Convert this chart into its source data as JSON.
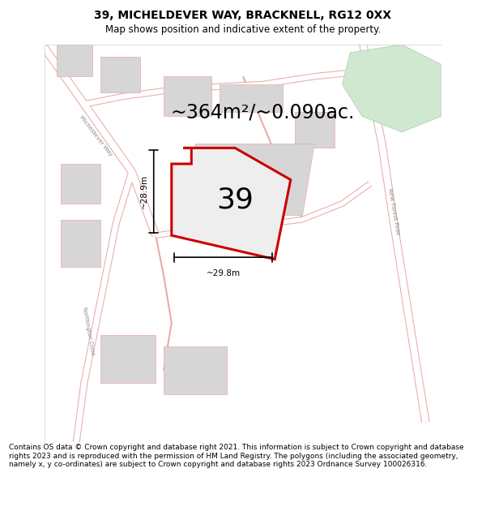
{
  "title": "39, MICHELDEVER WAY, BRACKNELL, RG12 0XX",
  "subtitle": "Map shows position and indicative extent of the property.",
  "area_text": "~364m²/~0.090ac.",
  "number_label": "39",
  "dim_height": "~28.9m",
  "dim_width": "~29.8m",
  "footer": "Contains OS data © Crown copyright and database right 2021. This information is subject to Crown copyright and database rights 2023 and is reproduced with the permission of HM Land Registry. The polygons (including the associated geometry, namely x, y co-ordinates) are subject to Crown copyright and database rights 2023 Ordnance Survey 100026316.",
  "title_fontsize": 10,
  "subtitle_fontsize": 8.5,
  "area_fontsize": 17,
  "number_fontsize": 26,
  "footer_fontsize": 6.5,
  "map_bg": "#f2f2f2",
  "road_fill": "#ffffff",
  "road_edge": "#e8aaaa",
  "plot_color": "#cc0000",
  "building_fill": "#d6d6d6",
  "building_edge": "#c8a8a8",
  "green_fill": "#d0e8d0",
  "green_edge": "#b0c8b0",
  "dim_color": "#000000",
  "text_color": "#000000",
  "label_color": "#888888"
}
